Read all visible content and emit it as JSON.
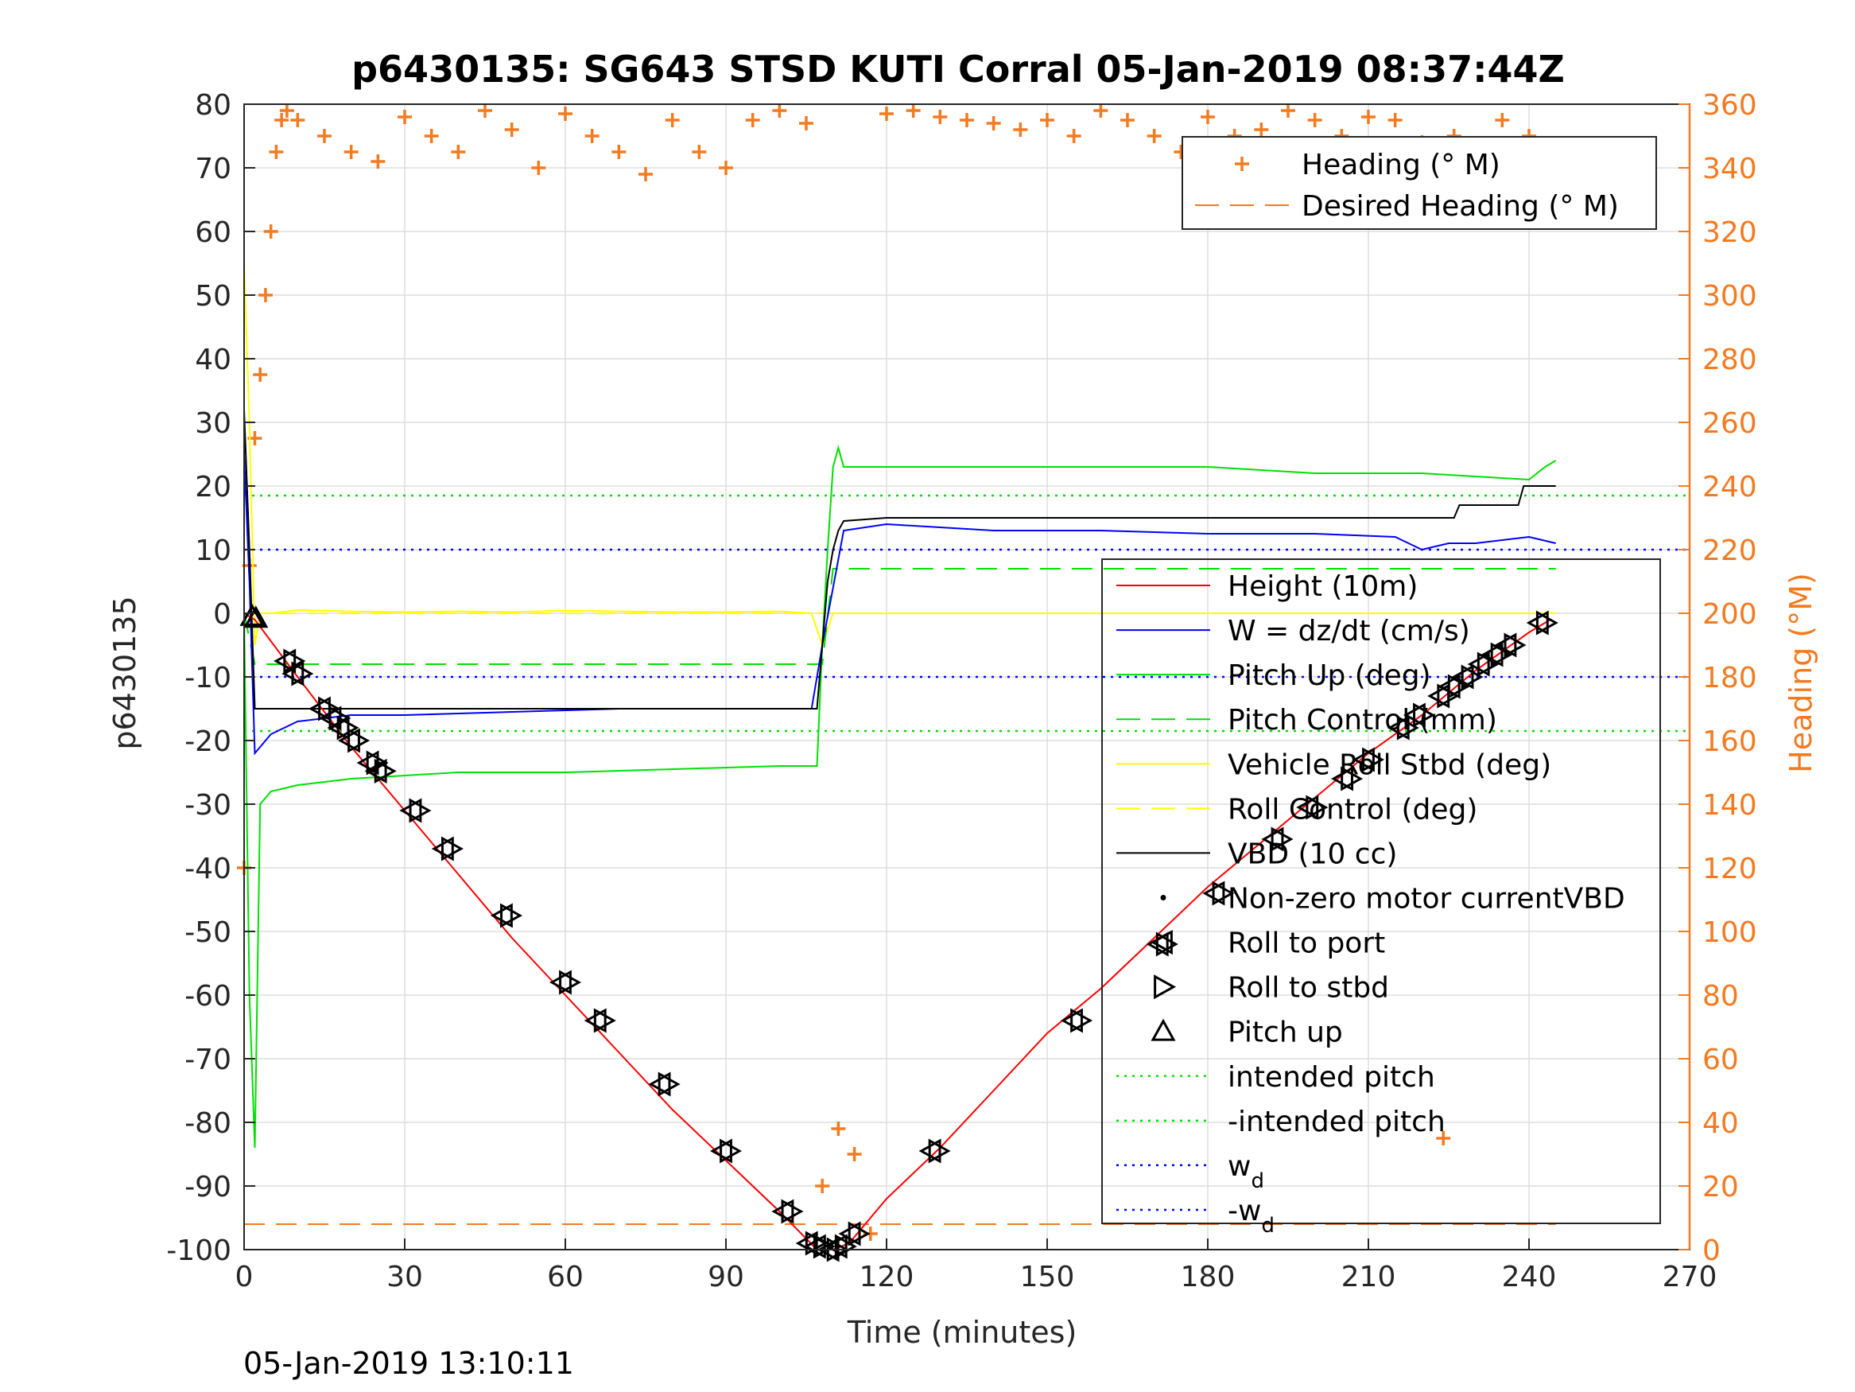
{
  "chart_data": {
    "type": "line",
    "title": "p6430135: SG643 STSD KUTI Corral 05-Jan-2019 08:37:44Z",
    "footer": "05-Jan-2019 13:10:11",
    "xlabel": "Time (minutes)",
    "ylabel_left": "p6430135",
    "ylabel_right": "Heading (°M)",
    "xlim": [
      0,
      270
    ],
    "ylim_left": [
      -100,
      80
    ],
    "ylim_right": [
      0,
      360
    ],
    "xticks": [
      0,
      30,
      60,
      90,
      120,
      150,
      180,
      210,
      240,
      270
    ],
    "yticks_left": [
      -100,
      -90,
      -80,
      -70,
      -60,
      -50,
      -40,
      -30,
      -20,
      -10,
      0,
      10,
      20,
      30,
      40,
      50,
      60,
      70,
      80
    ],
    "yticks_right": [
      0,
      20,
      40,
      60,
      80,
      100,
      120,
      140,
      160,
      180,
      200,
      220,
      240,
      260,
      280,
      300,
      320,
      340,
      360
    ],
    "grid": true,
    "colors": {
      "heading": "#f47a20",
      "height": "#ff0000",
      "w": "#0000ff",
      "pitch": "#00e000",
      "roll": "#ffff00",
      "vbd": "#000000",
      "markers": "#000000"
    },
    "legend_heading": [
      {
        "label": "Heading (° M)",
        "style": "plus",
        "color": "#f47a20"
      },
      {
        "label": "Desired Heading (° M)",
        "style": "dash",
        "color": "#f47a20"
      }
    ],
    "legend_main": [
      {
        "label": "Height (10m)",
        "style": "solid",
        "color": "#ff0000"
      },
      {
        "label": "W = dz/dt (cm/s)",
        "style": "solid",
        "color": "#0000ff"
      },
      {
        "label": "Pitch Up (deg)",
        "style": "solid",
        "color": "#00e000"
      },
      {
        "label": "Pitch Control (mm)",
        "style": "dash",
        "color": "#00e000"
      },
      {
        "label": "Vehicle Roll Stbd (deg)",
        "style": "solid",
        "color": "#ffff00"
      },
      {
        "label": "Roll Control (deg)",
        "style": "dash",
        "color": "#ffff00"
      },
      {
        "label": "VBD (10 cc)",
        "style": "solid",
        "color": "#000000"
      },
      {
        "label": "Non-zero motor currentVBD",
        "style": "dot",
        "color": "#000000"
      },
      {
        "label": "Roll to port",
        "style": "tri-left",
        "color": "#000000"
      },
      {
        "label": "Roll to stbd",
        "style": "tri-right",
        "color": "#000000"
      },
      {
        "label": "Pitch up",
        "style": "tri-up",
        "color": "#000000"
      },
      {
        "label": "intended pitch",
        "style": "dotted",
        "color": "#00e000"
      },
      {
        "label": "-intended pitch",
        "style": "dotted",
        "color": "#00e000"
      },
      {
        "label": "w",
        "sub": "d",
        "style": "dotted",
        "color": "#0000ff"
      },
      {
        "label": "-w",
        "sub": "d",
        "style": "dotted",
        "color": "#0000ff"
      }
    ],
    "series": [
      {
        "name": "Height (10m)",
        "color": "#ff0000",
        "x": [
          0,
          2,
          10,
          20,
          30,
          40,
          50,
          60,
          70,
          80,
          90,
          100,
          107,
          110,
          113,
          120,
          130,
          140,
          150,
          160,
          170,
          180,
          190,
          200,
          210,
          220,
          230,
          240,
          244
        ],
        "y": [
          0,
          -1,
          -10,
          -21,
          -31,
          -41,
          -51,
          -60,
          -69,
          -78,
          -86,
          -94,
          -100,
          -100,
          -99,
          -92,
          -84,
          -75,
          -66,
          -59,
          -51,
          -43,
          -36,
          -29,
          -22,
          -16,
          -9,
          -3,
          -1
        ]
      },
      {
        "name": "W = dz/dt (cm/s)",
        "color": "#0000ff",
        "x": [
          0,
          1,
          2,
          5,
          10,
          20,
          30,
          50,
          70,
          90,
          100,
          106,
          107,
          108,
          110,
          112,
          120,
          140,
          160,
          180,
          200,
          215,
          220,
          225,
          230,
          240,
          245
        ],
        "y": [
          25,
          5,
          -22,
          -19,
          -17,
          -16,
          -16,
          -15.5,
          -15,
          -15,
          -15,
          -15,
          -10,
          -5,
          4,
          13,
          14,
          13,
          13,
          12.5,
          12.5,
          12,
          10,
          11,
          11,
          12,
          11
        ]
      },
      {
        "name": "Pitch Up (deg)",
        "color": "#00e000",
        "x": [
          0,
          1,
          2,
          3,
          5,
          10,
          20,
          40,
          60,
          80,
          100,
          107,
          108,
          109,
          110,
          111,
          112,
          120,
          140,
          160,
          180,
          200,
          220,
          240,
          243,
          245
        ],
        "y": [
          0,
          -60,
          -84,
          -30,
          -28,
          -27,
          -26,
          -25,
          -25,
          -24.5,
          -24,
          -24,
          -5,
          10,
          23,
          26,
          23,
          23,
          23,
          23,
          23,
          22,
          22,
          21,
          23,
          24
        ]
      },
      {
        "name": "Pitch Control (mm)",
        "color": "#00e000",
        "x": [
          0,
          2,
          108,
          110,
          245
        ],
        "y": [
          0,
          -8,
          -8,
          7,
          7
        ]
      },
      {
        "name": "Vehicle Roll Stbd (deg)",
        "color": "#ffff00",
        "x": [
          0,
          1,
          2,
          3,
          5,
          10,
          20,
          30,
          40,
          50,
          60,
          70,
          80,
          90,
          100,
          106,
          108,
          110,
          120,
          140,
          160,
          180,
          200,
          220,
          230,
          240,
          245
        ],
        "y": [
          55,
          30,
          -5,
          0,
          0,
          0.5,
          0.3,
          0.2,
          0.3,
          0.2,
          0.4,
          0.3,
          0.2,
          0.2,
          0.3,
          0,
          -5,
          0,
          0,
          0,
          0,
          0,
          0,
          0,
          0,
          0,
          0
        ]
      },
      {
        "name": "Roll Control (deg)",
        "color": "#ffff00",
        "x": [
          0,
          245
        ],
        "y": [
          0,
          0
        ]
      },
      {
        "name": "VBD (10 cc)",
        "color": "#000000",
        "x": [
          0,
          1,
          2,
          2.5,
          10,
          50,
          100,
          107,
          108,
          109,
          110,
          111,
          112,
          120,
          160,
          200,
          226,
          227,
          238,
          239,
          244,
          245
        ],
        "y": [
          32,
          10,
          -15,
          -15,
          -15,
          -15,
          -15,
          -15,
          -5,
          5,
          10,
          13,
          14.5,
          15,
          15,
          15,
          15,
          17,
          17,
          20,
          20,
          20
        ]
      },
      {
        "name": "Heading (° M)",
        "color": "#f47a20",
        "axis": "right",
        "x": [
          0,
          1,
          2,
          3,
          4,
          5,
          6,
          7,
          8,
          10,
          15,
          20,
          25,
          30,
          35,
          40,
          45,
          50,
          55,
          60,
          65,
          70,
          75,
          80,
          85,
          90,
          95,
          100,
          105,
          108,
          111,
          114,
          117,
          120,
          125,
          130,
          135,
          140,
          145,
          150,
          155,
          160,
          165,
          170,
          175,
          180,
          185,
          190,
          195,
          200,
          205,
          210,
          215,
          220,
          224,
          226,
          230,
          235,
          240,
          244
        ],
        "y": [
          120,
          215,
          255,
          275,
          300,
          320,
          345,
          355,
          358,
          355,
          350,
          345,
          342,
          356,
          350,
          345,
          358,
          352,
          340,
          357,
          350,
          345,
          338,
          355,
          345,
          340,
          355,
          358,
          354,
          20,
          38,
          30,
          5,
          357,
          358,
          356,
          355,
          354,
          352,
          355,
          350,
          358,
          355,
          350,
          345,
          356,
          350,
          352,
          358,
          355,
          350,
          356,
          355,
          348,
          35,
          350,
          340,
          355,
          350,
          345
        ]
      },
      {
        "name": "Desired Heading (° M)",
        "color": "#f47a20",
        "axis": "right",
        "x": [
          0,
          245
        ],
        "y": [
          8,
          8
        ]
      }
    ],
    "reference_lines": [
      {
        "name": "intended pitch",
        "y": 18.5,
        "color": "#00e000"
      },
      {
        "name": "-intended pitch",
        "y": -18.5,
        "color": "#00e000"
      },
      {
        "name": "w_d",
        "y": 10,
        "color": "#0000ff"
      },
      {
        "name": "-w_d",
        "y": -10,
        "color": "#0000ff"
      }
    ],
    "markers": [
      {
        "type": "tri-up",
        "x": 1.5,
        "y": -0.5
      },
      {
        "type": "tri-up",
        "x": 2.2,
        "y": -0.8
      },
      {
        "type": "pair",
        "x": 8.5,
        "y": -7.5
      },
      {
        "type": "pair",
        "x": 10,
        "y": -9.5
      },
      {
        "type": "pair",
        "x": 15,
        "y": -15
      },
      {
        "type": "pair",
        "x": 17,
        "y": -16.5
      },
      {
        "type": "pair",
        "x": 18.5,
        "y": -18
      },
      {
        "type": "pair",
        "x": 20.5,
        "y": -20
      },
      {
        "type": "pair",
        "x": 24,
        "y": -23.5
      },
      {
        "type": "pair",
        "x": 25.5,
        "y": -24.8
      },
      {
        "type": "pair",
        "x": 32,
        "y": -31
      },
      {
        "type": "pair",
        "x": 38,
        "y": -37
      },
      {
        "type": "pair",
        "x": 49,
        "y": -47.5
      },
      {
        "type": "pair",
        "x": 60,
        "y": -58
      },
      {
        "type": "pair",
        "x": 66.5,
        "y": -64
      },
      {
        "type": "pair",
        "x": 78.5,
        "y": -74
      },
      {
        "type": "pair",
        "x": 90,
        "y": -84.5
      },
      {
        "type": "pair",
        "x": 101.5,
        "y": -94
      },
      {
        "type": "pair",
        "x": 106,
        "y": -99
      },
      {
        "type": "pair",
        "x": 107.5,
        "y": -99.5
      },
      {
        "type": "pair",
        "x": 110,
        "y": -100
      },
      {
        "type": "pair",
        "x": 111.5,
        "y": -99.5
      },
      {
        "type": "pair",
        "x": 114,
        "y": -97.5
      },
      {
        "type": "pair",
        "x": 129,
        "y": -84.5
      },
      {
        "type": "pair",
        "x": 155.5,
        "y": -64
      },
      {
        "type": "pair",
        "x": 171.5,
        "y": -52
      },
      {
        "type": "pair",
        "x": 182,
        "y": -44
      },
      {
        "type": "pair",
        "x": 193,
        "y": -35.5
      },
      {
        "type": "pair",
        "x": 199.5,
        "y": -30.5
      },
      {
        "type": "pair",
        "x": 206,
        "y": -26
      },
      {
        "type": "pair",
        "x": 210,
        "y": -23
      },
      {
        "type": "pair",
        "x": 216.5,
        "y": -18
      },
      {
        "type": "pair",
        "x": 219.5,
        "y": -16
      },
      {
        "type": "pair",
        "x": 224,
        "y": -13
      },
      {
        "type": "pair",
        "x": 226,
        "y": -11.5
      },
      {
        "type": "pair",
        "x": 228.5,
        "y": -10
      },
      {
        "type": "pair",
        "x": 231.5,
        "y": -8
      },
      {
        "type": "pair",
        "x": 234,
        "y": -6.5
      },
      {
        "type": "pair",
        "x": 236.5,
        "y": -5
      },
      {
        "type": "pair",
        "x": 242.5,
        "y": -1.5
      }
    ]
  }
}
